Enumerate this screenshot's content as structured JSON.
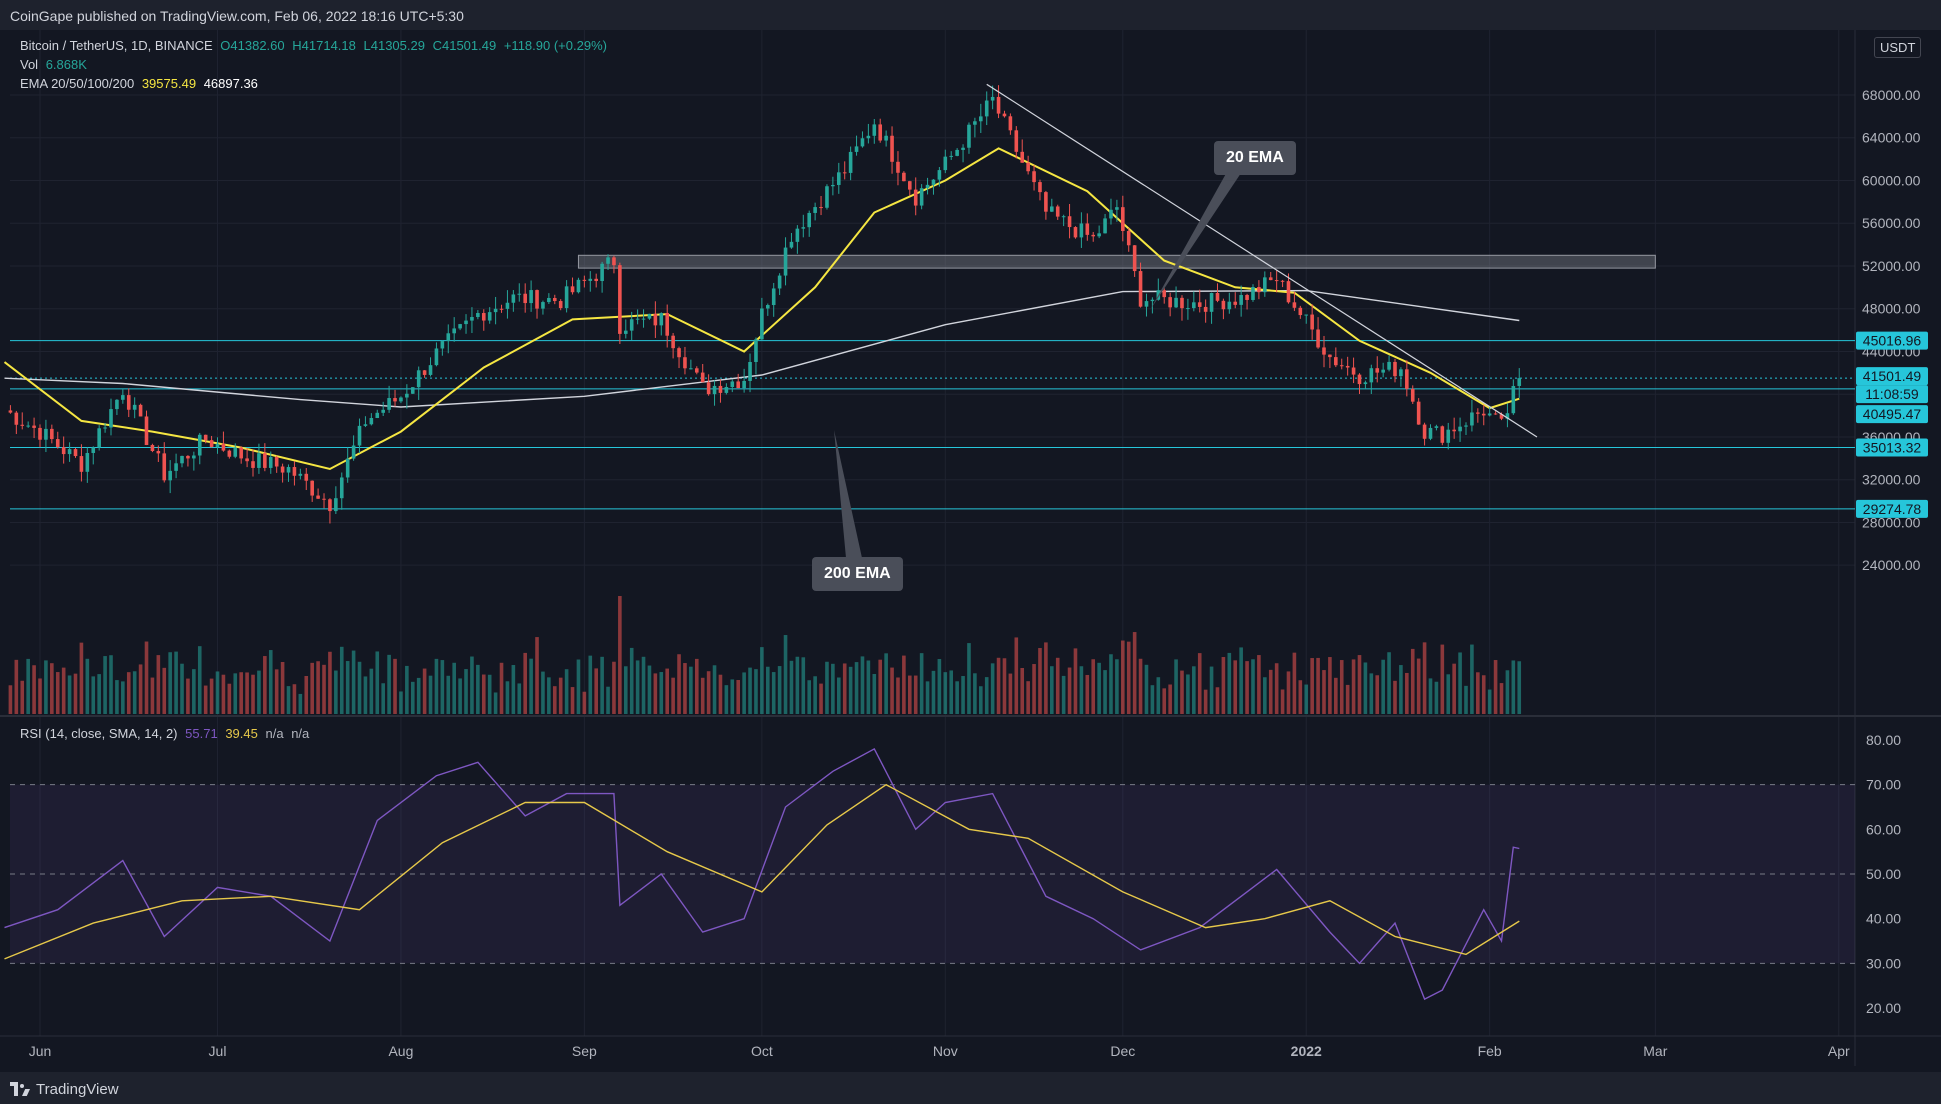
{
  "header": {
    "published": "CoinGape published on TradingView.com, Feb 06, 2022 18:16 UTC+5:30"
  },
  "legend": {
    "symbol": "Bitcoin / TetherUS, 1D, BINANCE",
    "open": "O41382.60",
    "high": "H41714.18",
    "low": "L41305.29",
    "close": "C41501.49",
    "change": "+118.90 (+0.29%)",
    "vol_label": "Vol",
    "vol_value": "6.868K",
    "ema_label": "EMA 20/50/100/200",
    "ema_20": "39575.49",
    "ema_200": "46897.36",
    "rsi_label": "RSI (14, close, SMA, 14, 2)",
    "rsi_value": "55.71",
    "rsi_ma": "39.45",
    "rsi_na1": "n/a",
    "rsi_na2": "n/a"
  },
  "currency": "USDT",
  "annotations": {
    "ema20": "20 EMA",
    "ema200": "200 EMA"
  },
  "footer": {
    "brand": "TradingView"
  },
  "colors": {
    "background": "#131722",
    "bull": "#26a69a",
    "bear": "#ef5350",
    "ema20": "#f5e642",
    "ema200": "#d1d4dc",
    "rsi": "#7e57c2",
    "rsi_ma": "#e6c84a",
    "level": "#26c6da"
  },
  "chart_data": [
    {
      "type": "candlestick",
      "title": "Bitcoin / TetherUS, 1D, BINANCE",
      "x_ticks": [
        "Jun",
        "Jul",
        "Aug",
        "Sep",
        "Oct",
        "Nov",
        "Dec",
        "2022",
        "Feb",
        "Mar",
        "Apr"
      ],
      "y_ticks": [
        24000,
        28000,
        32000,
        36000,
        40000,
        44000,
        48000,
        52000,
        56000,
        60000,
        64000,
        68000
      ],
      "y_tick_labels": [
        "24000.00",
        "28000.00",
        "32000.00",
        "36000.00",
        "",
        "44000.00",
        "48000.00",
        "52000.00",
        "56000.00",
        "60000.00",
        "64000.00",
        "68000.00"
      ],
      "ylim": [
        20500,
        72500
      ],
      "last_price": 41501.49,
      "countdown": "11:08:59",
      "price_labels": [
        {
          "value": 45016.96,
          "label": "45016.96",
          "kind": "level"
        },
        {
          "value": 41501.49,
          "label": "41501.49",
          "kind": "last"
        },
        {
          "value": 40495.47,
          "label": "40495.47",
          "kind": "level"
        },
        {
          "value": 35013.32,
          "label": "35013.32",
          "kind": "level"
        },
        {
          "value": 29274.78,
          "label": "29274.78",
          "kind": "level"
        }
      ],
      "horizontal_levels": [
        45016.96,
        40495.47,
        35013.32,
        29274.78
      ],
      "resistance_zone": {
        "from_date": "2021-08-31",
        "to_date": "2022-03-01",
        "low": 51800,
        "high": 53000
      },
      "trendline": {
        "from": {
          "date": "2021-11-08",
          "value": 69000
        },
        "to": {
          "date": "2022-02-09",
          "value": 36000
        }
      },
      "candle_checkpoints": [
        {
          "date": "2021-05-26",
          "price": 38500
        },
        {
          "date": "2021-06-01",
          "price": 36500
        },
        {
          "date": "2021-06-08",
          "price": 33500
        },
        {
          "date": "2021-06-15",
          "price": 40500
        },
        {
          "date": "2021-06-22",
          "price": 32500
        },
        {
          "date": "2021-06-29",
          "price": 35800
        },
        {
          "date": "2021-07-06",
          "price": 34000
        },
        {
          "date": "2021-07-13",
          "price": 33000
        },
        {
          "date": "2021-07-20",
          "price": 29800
        },
        {
          "date": "2021-07-26",
          "price": 37500
        },
        {
          "date": "2021-08-01",
          "price": 39800
        },
        {
          "date": "2021-08-07",
          "price": 43800
        },
        {
          "date": "2021-08-14",
          "price": 47500
        },
        {
          "date": "2021-08-20",
          "price": 49000
        },
        {
          "date": "2021-08-28",
          "price": 48800
        },
        {
          "date": "2021-09-06",
          "price": 52500
        },
        {
          "date": "2021-09-07",
          "price": 46500
        },
        {
          "date": "2021-09-14",
          "price": 47000
        },
        {
          "date": "2021-09-21",
          "price": 40500
        },
        {
          "date": "2021-09-28",
          "price": 41500
        },
        {
          "date": "2021-10-01",
          "price": 47500
        },
        {
          "date": "2021-10-06",
          "price": 55000
        },
        {
          "date": "2021-10-15",
          "price": 61000
        },
        {
          "date": "2021-10-20",
          "price": 65500
        },
        {
          "date": "2021-10-27",
          "price": 58500
        },
        {
          "date": "2021-11-01",
          "price": 61500
        },
        {
          "date": "2021-11-09",
          "price": 67500
        },
        {
          "date": "2021-11-18",
          "price": 57000
        },
        {
          "date": "2021-11-26",
          "price": 54500
        },
        {
          "date": "2021-11-30",
          "price": 57500
        },
        {
          "date": "2021-12-04",
          "price": 49000
        },
        {
          "date": "2021-12-14",
          "price": 48500
        },
        {
          "date": "2021-12-21",
          "price": 49000
        },
        {
          "date": "2021-12-27",
          "price": 50800
        },
        {
          "date": "2022-01-05",
          "price": 43500
        },
        {
          "date": "2022-01-10",
          "price": 41800
        },
        {
          "date": "2022-01-17",
          "price": 42500
        },
        {
          "date": "2022-01-21",
          "price": 36500
        },
        {
          "date": "2022-01-24",
          "price": 36300
        },
        {
          "date": "2022-01-31",
          "price": 38500
        },
        {
          "date": "2022-02-03",
          "price": 36900
        },
        {
          "date": "2022-02-06",
          "price": 41500
        }
      ],
      "ema20_checkpoints": [
        {
          "date": "2021-05-26",
          "value": 43000
        },
        {
          "date": "2021-06-08",
          "value": 37500
        },
        {
          "date": "2021-06-20",
          "value": 36500
        },
        {
          "date": "2021-07-05",
          "value": 35000
        },
        {
          "date": "2021-07-20",
          "value": 33000
        },
        {
          "date": "2021-08-01",
          "value": 36500
        },
        {
          "date": "2021-08-15",
          "value": 42500
        },
        {
          "date": "2021-08-30",
          "value": 47000
        },
        {
          "date": "2021-09-15",
          "value": 47500
        },
        {
          "date": "2021-09-28",
          "value": 44000
        },
        {
          "date": "2021-10-10",
          "value": 50000
        },
        {
          "date": "2021-10-20",
          "value": 57000
        },
        {
          "date": "2021-11-01",
          "value": 60000
        },
        {
          "date": "2021-11-10",
          "value": 63000
        },
        {
          "date": "2021-11-25",
          "value": 59000
        },
        {
          "date": "2021-12-08",
          "value": 52500
        },
        {
          "date": "2021-12-20",
          "value": 50000
        },
        {
          "date": "2021-12-30",
          "value": 49500
        },
        {
          "date": "2022-01-10",
          "value": 45000
        },
        {
          "date": "2022-01-22",
          "value": 42000
        },
        {
          "date": "2022-02-01",
          "value": 38700
        },
        {
          "date": "2022-02-06",
          "value": 39575
        }
      ],
      "ema200_checkpoints": [
        {
          "date": "2021-05-26",
          "value": 41500
        },
        {
          "date": "2021-06-15",
          "value": 41000
        },
        {
          "date": "2021-07-15",
          "value": 39500
        },
        {
          "date": "2021-08-01",
          "value": 38800
        },
        {
          "date": "2021-09-01",
          "value": 39800
        },
        {
          "date": "2021-10-01",
          "value": 41800
        },
        {
          "date": "2021-11-01",
          "value": 46500
        },
        {
          "date": "2021-12-01",
          "value": 49600
        },
        {
          "date": "2022-01-01",
          "value": 49700
        },
        {
          "date": "2022-02-06",
          "value": 46897
        }
      ]
    },
    {
      "type": "bar",
      "title": "Vol",
      "last_value": "6.868K"
    },
    {
      "type": "line",
      "title": "RSI (14, close, SMA, 14, 2)",
      "y_ticks": [
        20,
        30,
        40,
        50,
        60,
        70,
        80
      ],
      "y_tick_labels": [
        "20.00",
        "30.00",
        "40.00",
        "50.00",
        "60.00",
        "70.00",
        "80.00"
      ],
      "ylim": [
        15,
        85
      ],
      "band": [
        30,
        70
      ],
      "series": [
        {
          "name": "RSI",
          "points": [
            {
              "date": "2021-05-26",
              "value": 38
            },
            {
              "date": "2021-06-04",
              "value": 42
            },
            {
              "date": "2021-06-15",
              "value": 53
            },
            {
              "date": "2021-06-22",
              "value": 36
            },
            {
              "date": "2021-07-01",
              "value": 47
            },
            {
              "date": "2021-07-10",
              "value": 45
            },
            {
              "date": "2021-07-20",
              "value": 35
            },
            {
              "date": "2021-07-28",
              "value": 62
            },
            {
              "date": "2021-08-07",
              "value": 72
            },
            {
              "date": "2021-08-14",
              "value": 75
            },
            {
              "date": "2021-08-22",
              "value": 63
            },
            {
              "date": "2021-08-29",
              "value": 68
            },
            {
              "date": "2021-09-06",
              "value": 68
            },
            {
              "date": "2021-09-07",
              "value": 43
            },
            {
              "date": "2021-09-14",
              "value": 50
            },
            {
              "date": "2021-09-21",
              "value": 37
            },
            {
              "date": "2021-09-28",
              "value": 40
            },
            {
              "date": "2021-10-05",
              "value": 65
            },
            {
              "date": "2021-10-13",
              "value": 73
            },
            {
              "date": "2021-10-20",
              "value": 78
            },
            {
              "date": "2021-10-27",
              "value": 60
            },
            {
              "date": "2021-11-01",
              "value": 66
            },
            {
              "date": "2021-11-09",
              "value": 68
            },
            {
              "date": "2021-11-18",
              "value": 45
            },
            {
              "date": "2021-11-26",
              "value": 40
            },
            {
              "date": "2021-12-04",
              "value": 33
            },
            {
              "date": "2021-12-14",
              "value": 38
            },
            {
              "date": "2021-12-27",
              "value": 51
            },
            {
              "date": "2022-01-05",
              "value": 37
            },
            {
              "date": "2022-01-10",
              "value": 30
            },
            {
              "date": "2022-01-16",
              "value": 39
            },
            {
              "date": "2022-01-21",
              "value": 22
            },
            {
              "date": "2022-01-24",
              "value": 24
            },
            {
              "date": "2022-01-31",
              "value": 42
            },
            {
              "date": "2022-02-03",
              "value": 35
            },
            {
              "date": "2022-02-05",
              "value": 56
            },
            {
              "date": "2022-02-06",
              "value": 55.71
            }
          ]
        },
        {
          "name": "RSI-based MA",
          "points": [
            {
              "date": "2021-05-26",
              "value": 31
            },
            {
              "date": "2021-06-10",
              "value": 39
            },
            {
              "date": "2021-06-25",
              "value": 44
            },
            {
              "date": "2021-07-10",
              "value": 45
            },
            {
              "date": "2021-07-25",
              "value": 42
            },
            {
              "date": "2021-08-08",
              "value": 57
            },
            {
              "date": "2021-08-22",
              "value": 66
            },
            {
              "date": "2021-09-01",
              "value": 66
            },
            {
              "date": "2021-09-15",
              "value": 55
            },
            {
              "date": "2021-10-01",
              "value": 46
            },
            {
              "date": "2021-10-12",
              "value": 61
            },
            {
              "date": "2021-10-22",
              "value": 70
            },
            {
              "date": "2021-11-05",
              "value": 60
            },
            {
              "date": "2021-11-15",
              "value": 58
            },
            {
              "date": "2021-12-01",
              "value": 46
            },
            {
              "date": "2021-12-15",
              "value": 38
            },
            {
              "date": "2021-12-25",
              "value": 40
            },
            {
              "date": "2022-01-05",
              "value": 44
            },
            {
              "date": "2022-01-16",
              "value": 36
            },
            {
              "date": "2022-01-28",
              "value": 32
            },
            {
              "date": "2022-02-06",
              "value": 39.45
            }
          ]
        }
      ]
    }
  ]
}
